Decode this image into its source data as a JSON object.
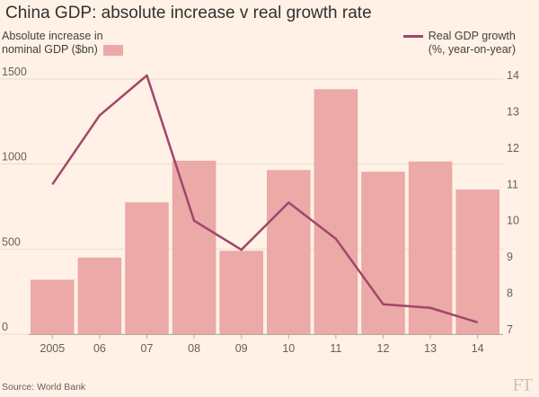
{
  "title": "China GDP: absolute increase v real growth rate",
  "legend": {
    "bar_label_line1": "Absolute increase in",
    "bar_label_line2": "nominal GDP ($bn)",
    "line_label_line1": "Real GDP growth",
    "line_label_line2": "(%, year-on-year)"
  },
  "source": "Source: World Bank",
  "logo": "FT",
  "colors": {
    "bar": "#eba9a8",
    "line": "#a2456b",
    "gridline": "#e9dccf",
    "background": "#fff1e5"
  },
  "chart_data": {
    "type": "bar+line",
    "categories": [
      "2005",
      "06",
      "07",
      "08",
      "09",
      "10",
      "11",
      "12",
      "13",
      "14"
    ],
    "series": [
      {
        "name": "Absolute increase in nominal GDP ($bn)",
        "type": "bar",
        "axis": "left",
        "values": [
          320,
          450,
          775,
          1020,
          490,
          965,
          1440,
          955,
          1015,
          850
        ]
      },
      {
        "name": "Real GDP growth (%, year-on-year)",
        "type": "line",
        "axis": "right",
        "values": [
          11.0,
          12.9,
          14.0,
          10.0,
          9.2,
          10.5,
          9.5,
          7.7,
          7.6,
          7.2
        ]
      }
    ],
    "y_left": {
      "min": 0,
      "max": 1500,
      "ticks": [
        0,
        500,
        1000,
        1500
      ]
    },
    "y_right": {
      "min": 7,
      "max": 14,
      "ticks": [
        7,
        8,
        9,
        10,
        11,
        12,
        13,
        14
      ]
    },
    "grid": true
  }
}
